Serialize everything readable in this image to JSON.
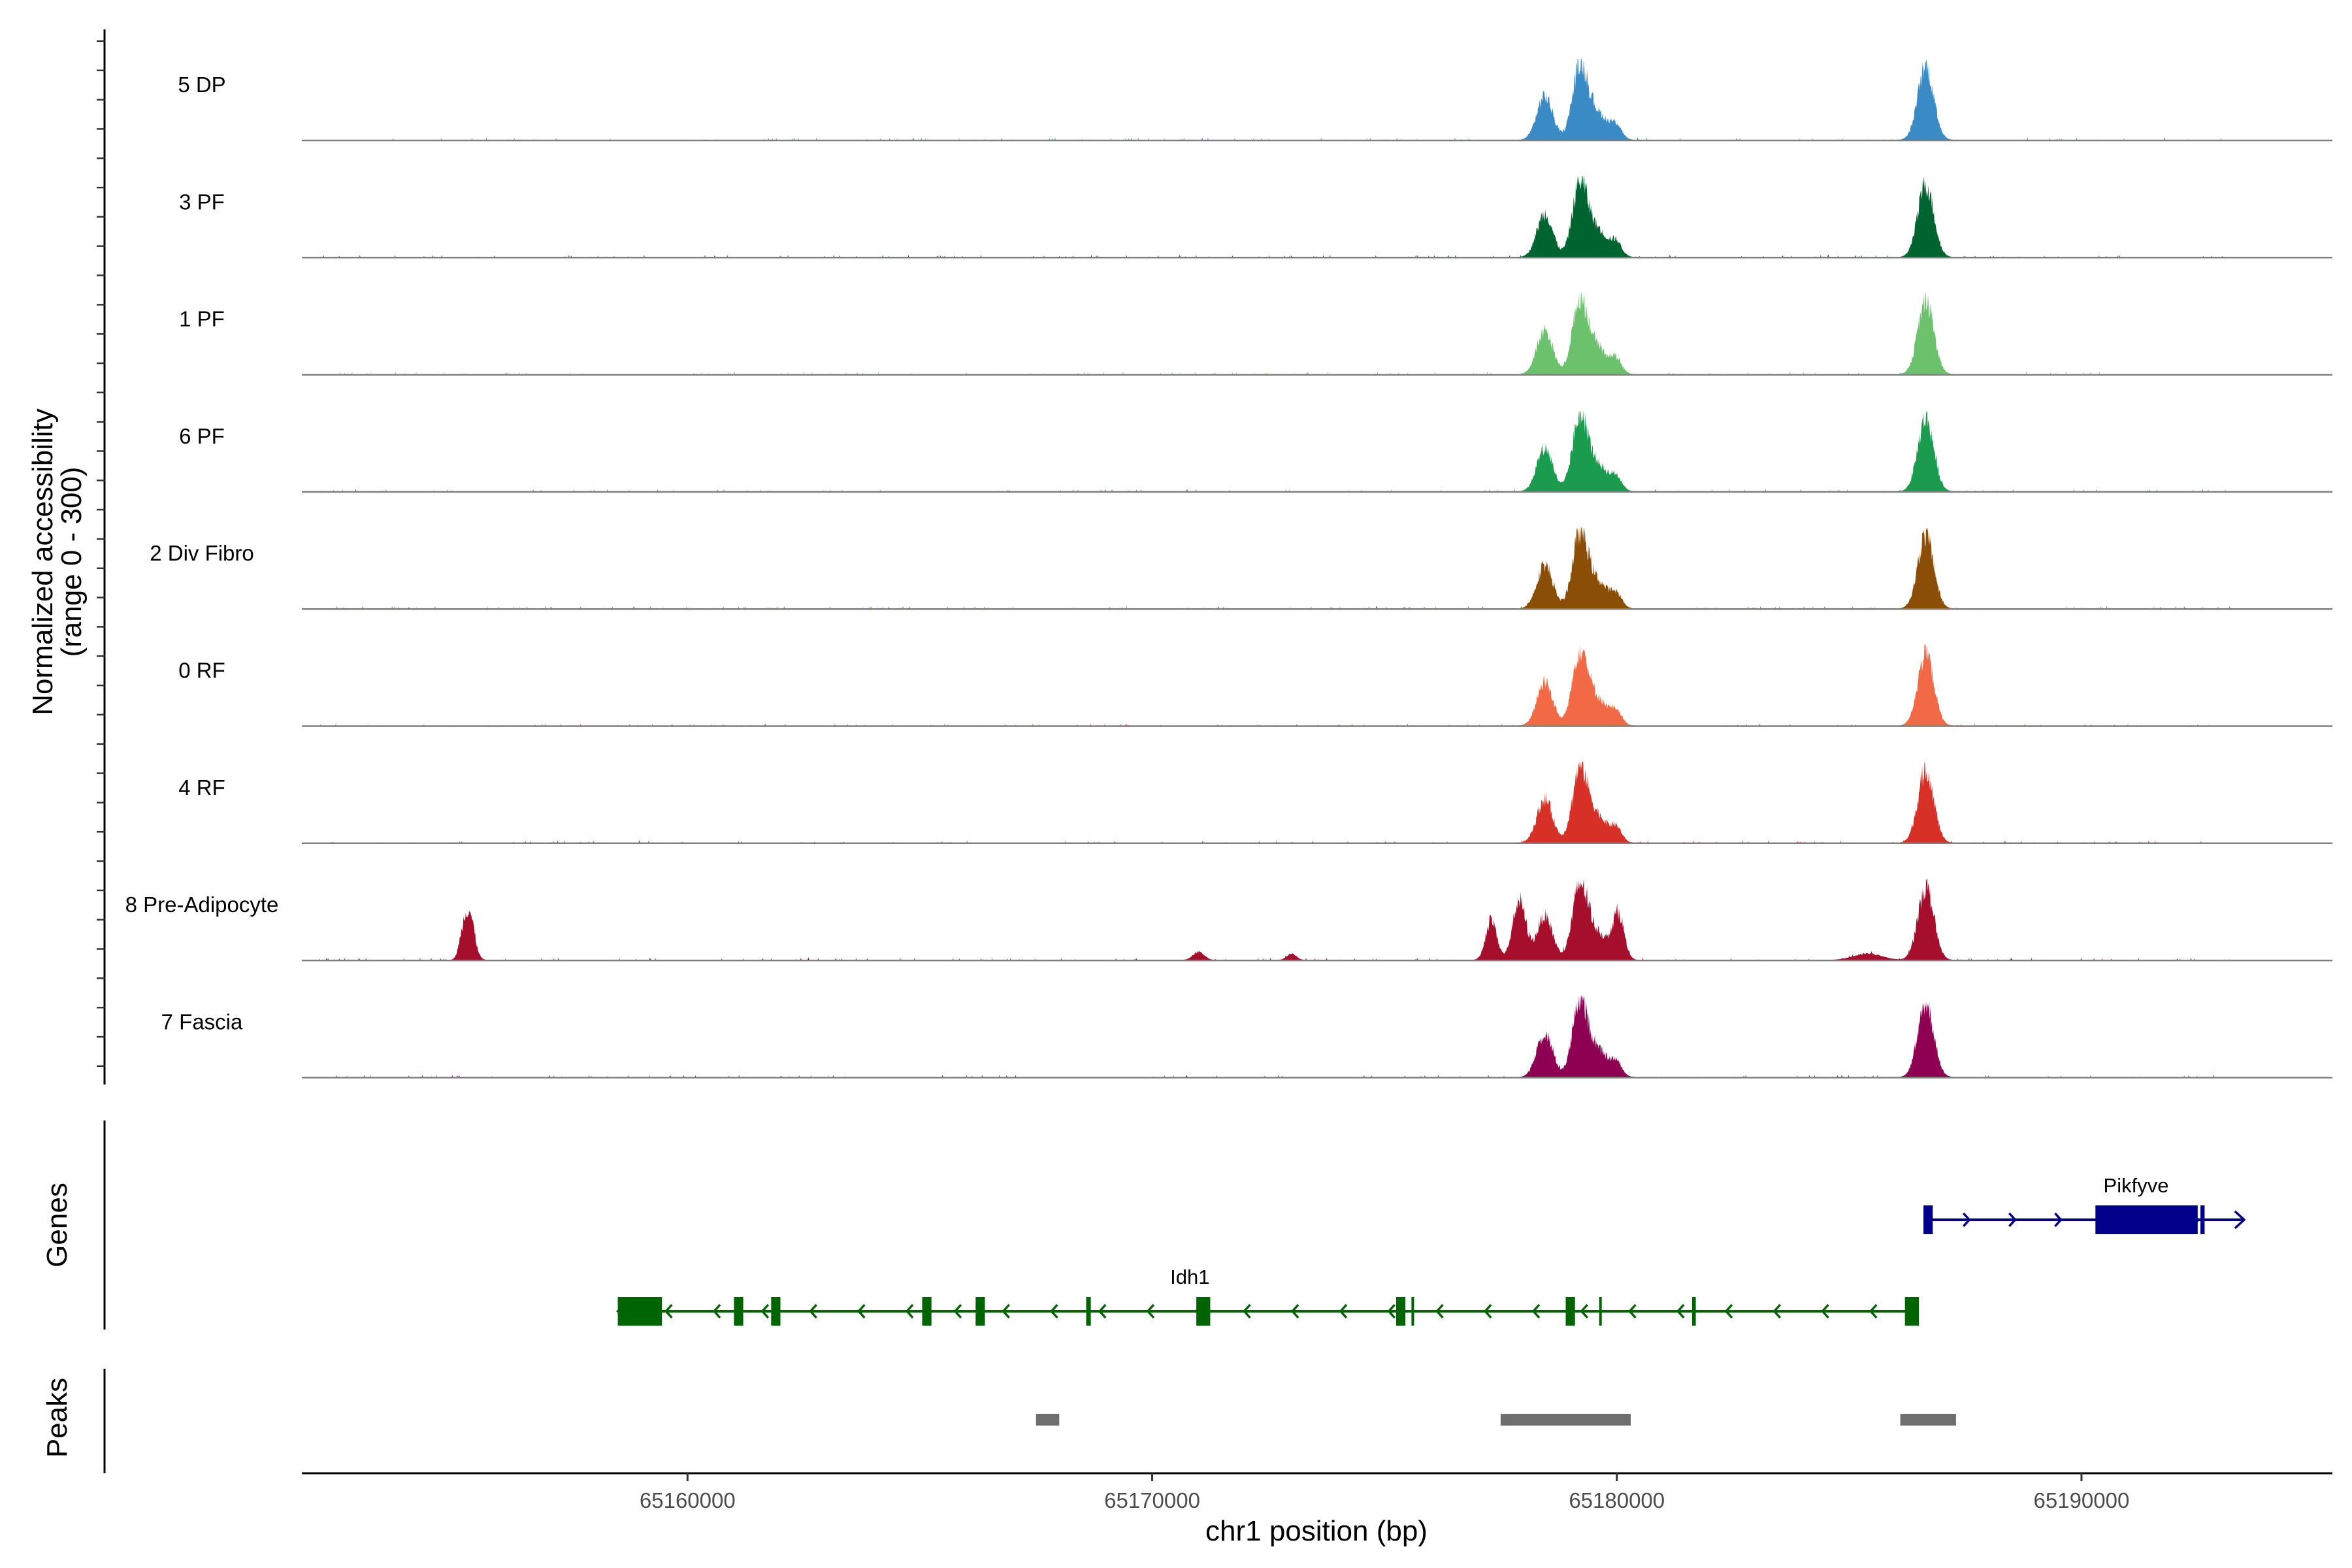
{
  "chart_data": {
    "type": "area",
    "title": "",
    "xlabel": "chr1 position (bp)",
    "ylabel_line1": "Normalized accessibility",
    "ylabel_line2": "(range 0 - 300)",
    "xlim": [
      65151700,
      65195400
    ],
    "ylim": [
      0,
      300
    ],
    "x_ticks": [
      65160000,
      65170000,
      65180000,
      65190000
    ],
    "x_tick_labels": [
      "65160000",
      "65170000",
      "65180000",
      "65190000"
    ],
    "tracks": [
      {
        "name": "5 DP",
        "color": "#3a8ac6",
        "level": 1.0
      },
      {
        "name": "3 PF",
        "color": "#006430",
        "level": 1.0
      },
      {
        "name": "1 PF",
        "color": "#6cc26c",
        "level": 1.0
      },
      {
        "name": "6 PF",
        "color": "#1b9b4e",
        "level": 1.0
      },
      {
        "name": "2 Div Fibro",
        "color": "#8a4e06",
        "level": 1.0
      },
      {
        "name": "0 RF",
        "color": "#f16a45",
        "level": 1.0
      },
      {
        "name": "4 RF",
        "color": "#d73027",
        "level": 1.0
      },
      {
        "name": "8 Pre-Adipocyte",
        "color": "#a50f2c",
        "level": 1.0
      },
      {
        "name": "7 Fascia",
        "color": "#8e0152",
        "level": 1.0
      }
    ],
    "peak_shapes": [
      {
        "center": 65178450,
        "sigma": 170,
        "height": 0.55
      },
      {
        "center": 65179200,
        "sigma": 160,
        "height": 0.82
      },
      {
        "center": 65179550,
        "sigma": 260,
        "height": 0.35
      },
      {
        "center": 65180000,
        "sigma": 110,
        "height": 0.14
      },
      {
        "center": 65186650,
        "sigma": 170,
        "height": 0.92
      }
    ],
    "genes_panel_label": "Genes",
    "peaks_panel_label": "Peaks",
    "genes": [
      {
        "name": "Pikfyve",
        "strand": "+",
        "start": 65186600,
        "end": 65193500,
        "color": "#00008b",
        "exons": [
          [
            65186600,
            65186800
          ],
          [
            65190300,
            65192500
          ],
          [
            65192560,
            65192650
          ]
        ]
      },
      {
        "name": "Idh1",
        "strand": "-",
        "start": 65158500,
        "end": 65186500,
        "color": "#006400",
        "exons": [
          [
            65158500,
            65159450
          ],
          [
            65161000,
            65161200
          ],
          [
            65161800,
            65162000
          ],
          [
            65165050,
            65165250
          ],
          [
            65166200,
            65166400
          ],
          [
            65168580,
            65168680
          ],
          [
            65170950,
            65171250
          ],
          [
            65175250,
            65175450
          ],
          [
            65175580,
            65175630
          ],
          [
            65178900,
            65179100
          ],
          [
            65179620,
            65179670
          ],
          [
            65181620,
            65181700
          ],
          [
            65186200,
            65186500
          ]
        ]
      }
    ],
    "peaks": [
      {
        "start": 65167500,
        "end": 65168000
      },
      {
        "start": 65177500,
        "end": 65180300
      },
      {
        "start": 65186100,
        "end": 65187300
      }
    ],
    "peak_color": "#6e6e6e"
  }
}
